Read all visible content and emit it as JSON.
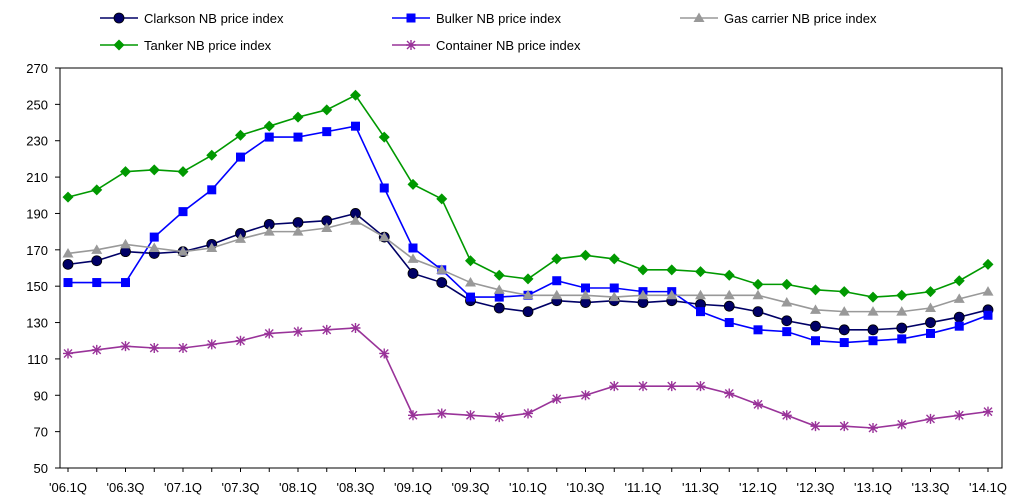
{
  "chart_data": {
    "type": "line",
    "title": "",
    "xlabel": "",
    "ylabel": "",
    "ylim": [
      50,
      270
    ],
    "yticks": [
      50,
      70,
      90,
      110,
      130,
      150,
      170,
      190,
      210,
      230,
      250,
      270
    ],
    "grid": false,
    "legend_position": "top",
    "x": [
      "'06.1Q",
      "'06.2Q",
      "'06.3Q",
      "'06.4Q",
      "'07.1Q",
      "'07.2Q",
      "'07.3Q",
      "'07.4Q",
      "'08.1Q",
      "'08.2Q",
      "'08.3Q",
      "'08.4Q",
      "'09.1Q",
      "'09.2Q",
      "'09.3Q",
      "'09.4Q",
      "'10.1Q",
      "'10.2Q",
      "'10.3Q",
      "'10.4Q",
      "'11.1Q",
      "'11.2Q",
      "'11.3Q",
      "'11.4Q",
      "'12.1Q",
      "'12.2Q",
      "'12.3Q",
      "'12.4Q",
      "'13.1Q",
      "'13.2Q",
      "'13.3Q",
      "'13.4Q",
      "'14.1Q"
    ],
    "xtick_labels": [
      "'06.1Q",
      "'06.3Q",
      "'07.1Q",
      "'07.3Q",
      "'08.1Q",
      "'08.3Q",
      "'09.1Q",
      "'09.3Q",
      "'10.1Q",
      "'10.3Q",
      "'11.1Q",
      "'11.3Q",
      "'12.1Q",
      "'12.3Q",
      "'13.1Q",
      "'13.3Q",
      "'14.1Q"
    ],
    "series": [
      {
        "name": "Clarkson NB price index",
        "color": "#000066",
        "marker": "circle",
        "values": [
          162,
          164,
          169,
          168,
          169,
          173,
          179,
          184,
          185,
          186,
          190,
          177,
          157,
          152,
          142,
          138,
          136,
          142,
          141,
          142,
          141,
          142,
          140,
          139,
          136,
          131,
          128,
          126,
          126,
          127,
          130,
          133,
          137
        ]
      },
      {
        "name": "Bulker NB price index",
        "color": "#0000ff",
        "marker": "square",
        "values": [
          152,
          152,
          152,
          177,
          191,
          203,
          221,
          232,
          232,
          235,
          238,
          204,
          171,
          159,
          144,
          144,
          145,
          153,
          149,
          149,
          147,
          147,
          136,
          130,
          126,
          125,
          120,
          119,
          120,
          121,
          124,
          128,
          134
        ]
      },
      {
        "name": "Gas carrier NB price index",
        "color": "#999999",
        "marker": "triangle",
        "values": [
          168,
          170,
          173,
          171,
          169,
          171,
          176,
          180,
          180,
          182,
          186,
          177,
          165,
          159,
          152,
          148,
          145,
          145,
          145,
          144,
          145,
          145,
          145,
          145,
          145,
          141,
          137,
          136,
          136,
          136,
          138,
          143,
          147
        ]
      },
      {
        "name": "Tanker NB price index",
        "color": "#009900",
        "marker": "diamond",
        "values": [
          199,
          203,
          213,
          214,
          213,
          222,
          233,
          238,
          243,
          247,
          255,
          232,
          206,
          198,
          164,
          156,
          154,
          165,
          167,
          165,
          159,
          159,
          158,
          156,
          151,
          151,
          148,
          147,
          144,
          145,
          147,
          153,
          162
        ]
      },
      {
        "name": "Container NB price index",
        "color": "#993399",
        "marker": "asterisk",
        "values": [
          113,
          115,
          117,
          116,
          116,
          118,
          120,
          124,
          125,
          126,
          127,
          113,
          79,
          80,
          79,
          78,
          80,
          88,
          90,
          95,
          95,
          95,
          95,
          91,
          85,
          79,
          73,
          73,
          72,
          74,
          77,
          79,
          81
        ]
      }
    ]
  }
}
